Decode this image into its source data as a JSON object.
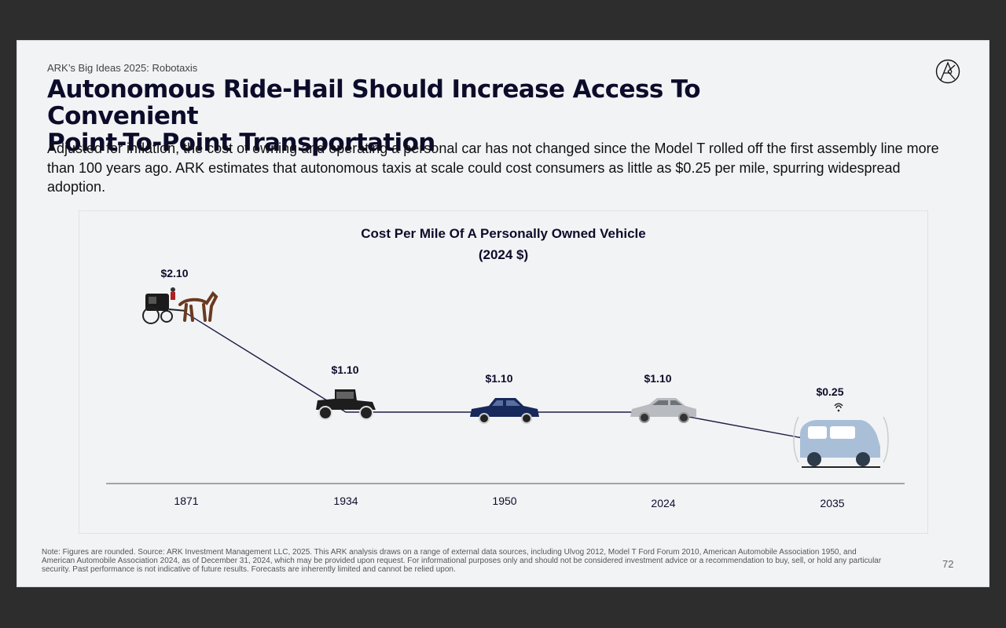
{
  "slide": {
    "kicker": "ARK’s Big Ideas 2025: Robotaxis",
    "title_line1": "Autonomous Ride-Hail Should Increase Access To Convenient",
    "title_line2": "Point-To-Point Transportation",
    "subtitle": "Adjusted for inflation, the cost of owning and operating a personal car has not changed since the Model T rolled off the first assembly line more than 100 years ago. ARK estimates that autonomous taxis at scale could cost consumers as little as $0.25 per mile, spurring widespread adoption.",
    "footnote": "Note: Figures are rounded. Source: ARK Investment Management LLC, 2025. This ARK analysis draws on a range of external data sources, including Ulvog 2012, Model T Ford Forum 2010, American Automobile Association 1950, and American Automobile Association 2024, as of December 31, 2024, which may be provided upon request. For informational purposes only and should not be considered investment advice or a recommendation to buy, sell, or hold any particular security. Past performance is not indicative of future results. Forecasts are inherently limited and cannot be relied upon.",
    "page_number": "72",
    "logo_icon": "ark-logo-icon"
  },
  "chart_data": {
    "type": "line",
    "title_line1": "Cost Per Mile Of A Personally Owned Vehicle",
    "title_line2": "(2024 $)",
    "categories": [
      "1871",
      "1934",
      "1950",
      "2024",
      "2035"
    ],
    "values": [
      2.1,
      1.1,
      1.1,
      1.1,
      0.25
    ],
    "value_labels": [
      "$2.10",
      "$1.10",
      "$1.10",
      "$1.10",
      "$0.25"
    ],
    "marker_icons": [
      "horse-carriage-icon",
      "model-t-car-icon",
      "1950s-sedan-icon",
      "modern-sedan-icon",
      "robotaxi-icon"
    ],
    "ylim": [
      0,
      2.5
    ],
    "grid": false,
    "legend": "none",
    "colors": {
      "line": "#1c1c46",
      "axis": "#555555"
    }
  }
}
